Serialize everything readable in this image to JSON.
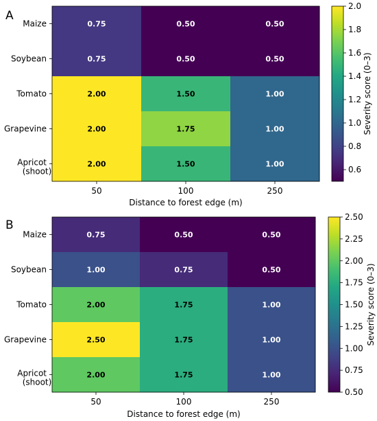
{
  "chart_data": [
    {
      "type": "heatmap",
      "panel_label": "A",
      "categories_y": [
        "Maize",
        "Soybean",
        "Tomato",
        "Grapevine",
        "Apricot"
      ],
      "category_sublabels": {
        "Apricot": "(shoot)"
      },
      "categories_x": [
        "50",
        "100",
        "250"
      ],
      "values": [
        [
          0.75,
          0.5,
          0.5
        ],
        [
          0.75,
          0.5,
          0.5
        ],
        [
          2.0,
          1.5,
          1.0
        ],
        [
          2.0,
          1.75,
          1.0
        ],
        [
          2.0,
          1.5,
          1.0
        ]
      ],
      "cell_labels": [
        [
          "0.75",
          "0.50",
          "0.50"
        ],
        [
          "0.75",
          "0.50",
          "0.50"
        ],
        [
          "2.00",
          "1.50",
          "1.00"
        ],
        [
          "2.00",
          "1.75",
          "1.00"
        ],
        [
          "2.00",
          "1.50",
          "1.00"
        ]
      ],
      "xlabel": "Distance to forest edge (m)",
      "colorbar": {
        "label": "Severity score (0–3)",
        "range": [
          0.5,
          2.0
        ],
        "ticks": [
          0.6,
          0.8,
          1.0,
          1.2,
          1.4,
          1.6,
          1.8,
          2.0
        ],
        "tick_labels": [
          "0.6",
          "0.8",
          "1.0",
          "1.2",
          "1.4",
          "1.6",
          "1.8",
          "2.0"
        ],
        "colormap": "viridis"
      }
    },
    {
      "type": "heatmap",
      "panel_label": "B",
      "categories_y": [
        "Maize",
        "Soybean",
        "Tomato",
        "Grapevine",
        "Apricot"
      ],
      "category_sublabels": {
        "Apricot": "(shoot)"
      },
      "categories_x": [
        "50",
        "100",
        "250"
      ],
      "values": [
        [
          0.75,
          0.5,
          0.5
        ],
        [
          1.0,
          0.75,
          0.5
        ],
        [
          2.0,
          1.75,
          1.0
        ],
        [
          2.5,
          1.75,
          1.0
        ],
        [
          2.0,
          1.75,
          1.0
        ]
      ],
      "cell_labels": [
        [
          "0.75",
          "0.50",
          "0.50"
        ],
        [
          "1.00",
          "0.75",
          "0.50"
        ],
        [
          "2.00",
          "1.75",
          "1.00"
        ],
        [
          "2.50",
          "1.75",
          "1.00"
        ],
        [
          "2.00",
          "1.75",
          "1.00"
        ]
      ],
      "xlabel": "Distance to forest edge (m)",
      "colorbar": {
        "label": "Severity score (0–3)",
        "range": [
          0.5,
          2.5
        ],
        "ticks": [
          0.5,
          0.75,
          1.0,
          1.25,
          1.5,
          1.75,
          2.0,
          2.25,
          2.5
        ],
        "tick_labels": [
          "0.50",
          "0.75",
          "1.00",
          "1.25",
          "1.50",
          "1.75",
          "2.00",
          "2.25",
          "2.50"
        ],
        "colormap": "viridis"
      }
    }
  ]
}
